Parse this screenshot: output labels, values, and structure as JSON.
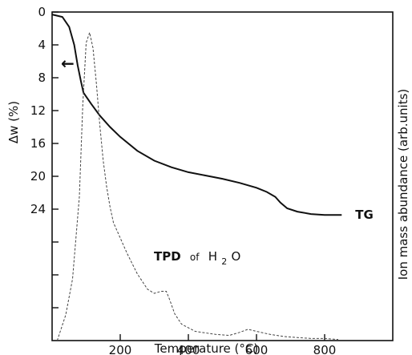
{
  "chart_data": {
    "type": "line",
    "xlabel": "Temperature (°C)",
    "ylabel": "Δw (%)",
    "y2label": "Ion mass abundance (arb.units)",
    "xlim": [
      0,
      1000
    ],
    "ylim": [
      0,
      40
    ],
    "y_inverted": true,
    "xticks": [
      200,
      400,
      600,
      800
    ],
    "yticks": [
      0,
      4,
      8,
      12,
      16,
      20,
      24
    ],
    "xtick_labels": [
      "200",
      "400",
      "600",
      "800"
    ],
    "ytick_labels": [
      "0",
      "4",
      "8",
      "12",
      "16",
      "20",
      "24"
    ],
    "grid": false,
    "annotations": {
      "tg": "TG",
      "tpd_main": "TPD",
      "tpd_of": "of",
      "tpd_h": "H",
      "tpd_sub": "2",
      "tpd_o": "O",
      "arrow": "←"
    },
    "series": [
      {
        "name": "TG",
        "axis": "left",
        "style": "solid",
        "color": "#111111",
        "x": [
          0,
          30,
          50,
          65,
          75,
          85,
          92,
          100,
          115,
          140,
          170,
          200,
          250,
          300,
          350,
          400,
          450,
          500,
          550,
          600,
          630,
          655,
          670,
          690,
          720,
          760,
          800,
          850
        ],
        "y": [
          0.3,
          0.6,
          1.8,
          4.0,
          6.5,
          8.5,
          9.8,
          10.3,
          11.2,
          12.6,
          14.0,
          15.2,
          16.9,
          18.1,
          18.9,
          19.5,
          19.9,
          20.3,
          20.8,
          21.4,
          21.9,
          22.5,
          23.2,
          23.9,
          24.3,
          24.6,
          24.7,
          24.7
        ]
      },
      {
        "name": "TPD of H2O",
        "axis": "right",
        "style": "dashed",
        "color": "#444444",
        "x": [
          15,
          40,
          60,
          80,
          90,
          100,
          110,
          120,
          130,
          140,
          150,
          160,
          170,
          180,
          200,
          220,
          250,
          280,
          300,
          320,
          335,
          345,
          360,
          380,
          420,
          480,
          520,
          550,
          575,
          600,
          640,
          680,
          720,
          760,
          800,
          840
        ],
        "y": [
          0,
          2.5,
          6,
          14,
          23,
          29,
          30,
          28.5,
          25,
          21,
          17.5,
          15,
          13,
          11.5,
          10,
          8.5,
          6.5,
          5,
          4.6,
          4.8,
          4.8,
          4.0,
          2.6,
          1.6,
          0.9,
          0.6,
          0.5,
          0.8,
          1.1,
          0.9,
          0.6,
          0.4,
          0.3,
          0.2,
          0.2,
          0.1
        ]
      }
    ]
  }
}
